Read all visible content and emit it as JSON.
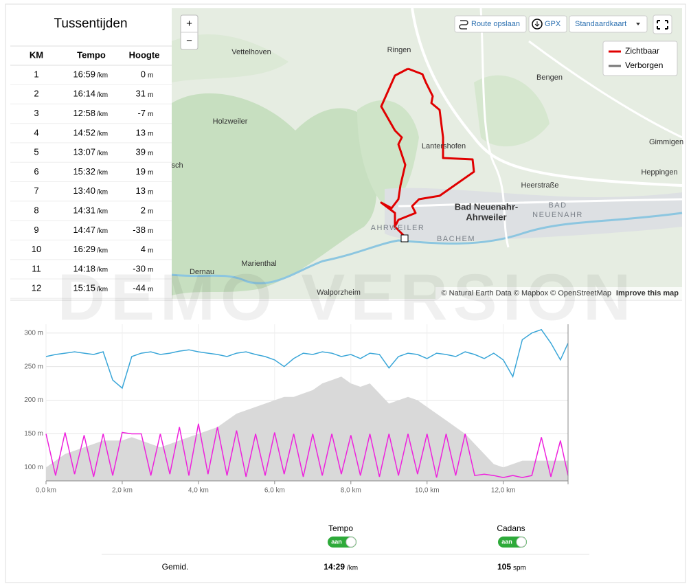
{
  "splits": {
    "title": "Tussentijden",
    "headers": [
      "KM",
      "Tempo",
      "Hoogte"
    ],
    "rows": [
      {
        "km": 1,
        "tempo": "16:59",
        "tempo_unit": "/km",
        "hoogte": 0,
        "hoogte_unit": "m"
      },
      {
        "km": 2,
        "tempo": "16:14",
        "tempo_unit": "/km",
        "hoogte": 31,
        "hoogte_unit": "m"
      },
      {
        "km": 3,
        "tempo": "12:58",
        "tempo_unit": "/km",
        "hoogte": -7,
        "hoogte_unit": "m"
      },
      {
        "km": 4,
        "tempo": "14:52",
        "tempo_unit": "/km",
        "hoogte": 13,
        "hoogte_unit": "m"
      },
      {
        "km": 5,
        "tempo": "13:07",
        "tempo_unit": "/km",
        "hoogte": 39,
        "hoogte_unit": "m"
      },
      {
        "km": 6,
        "tempo": "15:32",
        "tempo_unit": "/km",
        "hoogte": 19,
        "hoogte_unit": "m"
      },
      {
        "km": 7,
        "tempo": "13:40",
        "tempo_unit": "/km",
        "hoogte": 13,
        "hoogte_unit": "m"
      },
      {
        "km": 8,
        "tempo": "14:31",
        "tempo_unit": "/km",
        "hoogte": 2,
        "hoogte_unit": "m"
      },
      {
        "km": 9,
        "tempo": "14:47",
        "tempo_unit": "/km",
        "hoogte": -38,
        "hoogte_unit": "m"
      },
      {
        "km": 10,
        "tempo": "16:29",
        "tempo_unit": "/km",
        "hoogte": 4,
        "hoogte_unit": "m"
      },
      {
        "km": 11,
        "tempo": "14:18",
        "tempo_unit": "/km",
        "hoogte": -30,
        "hoogte_unit": "m"
      },
      {
        "km": 12,
        "tempo": "15:15",
        "tempo_unit": "/km",
        "hoogte": -44,
        "hoogte_unit": "m"
      }
    ]
  },
  "map": {
    "zoom_in": "+",
    "zoom_out": "−",
    "buttons": [
      "Route opslaan",
      "GPX",
      "Standaardkaart"
    ],
    "legend": [
      {
        "label": "Zichtbaar",
        "color": "#e00000"
      },
      {
        "label": "Verborgen",
        "color": "#777777"
      }
    ],
    "places": [
      "Vettelhoven",
      "Ringen",
      "Bengen",
      "Holzweiler",
      "Lantershofen",
      "Gimmigen",
      "sch",
      "Heerstraße",
      "Heppingen",
      "Bad Neuenahr-",
      "Ahrweiler",
      "BAD",
      "NEUENAHR",
      "AHRWEILER",
      "BACHEM",
      "Marienthal",
      "Dernau",
      "Walporzheim"
    ],
    "attribution": "© Natural Earth Data © Mapbox © OpenStreetMap",
    "improve": "Improve this map"
  },
  "watermark": "DEMO VERSION",
  "chart_data": {
    "type": "line",
    "x": [
      0,
      0.25,
      0.5,
      0.75,
      1,
      1.25,
      1.5,
      1.75,
      2,
      2.25,
      2.5,
      2.75,
      3,
      3.25,
      3.5,
      3.75,
      4,
      4.25,
      4.5,
      4.75,
      5,
      5.25,
      5.5,
      5.75,
      6,
      6.25,
      6.5,
      6.75,
      7,
      7.25,
      7.5,
      7.75,
      8,
      8.25,
      8.5,
      8.75,
      9,
      9.25,
      9.5,
      9.75,
      10,
      10.25,
      10.5,
      10.75,
      11,
      11.25,
      11.5,
      11.75,
      12,
      12.25,
      12.5,
      12.75,
      13,
      13.25,
      13.5,
      13.7
    ],
    "series": [
      {
        "color": "#d9d9d9",
        "fill": true,
        "values": [
          100,
          110,
          120,
          125,
          130,
          135,
          140,
          140,
          140,
          145,
          140,
          135,
          130,
          135,
          140,
          145,
          150,
          155,
          160,
          170,
          180,
          185,
          190,
          195,
          200,
          205,
          205,
          210,
          215,
          225,
          230,
          235,
          225,
          220,
          225,
          210,
          195,
          200,
          205,
          200,
          190,
          180,
          170,
          160,
          150,
          135,
          120,
          105,
          100,
          105,
          110,
          110,
          110,
          110,
          110,
          110
        ]
      },
      {
        "color": "#3aa6d8",
        "fill": false,
        "values": [
          265,
          268,
          270,
          272,
          270,
          268,
          272,
          230,
          218,
          265,
          270,
          272,
          268,
          270,
          273,
          275,
          272,
          270,
          268,
          265,
          270,
          272,
          268,
          265,
          260,
          250,
          262,
          270,
          268,
          272,
          270,
          265,
          268,
          262,
          270,
          268,
          248,
          265,
          270,
          268,
          262,
          270,
          268,
          265,
          272,
          268,
          262,
          270,
          260,
          235,
          290,
          300,
          305,
          285,
          260,
          285
        ]
      },
      {
        "color": "#ee22dd",
        "fill": false,
        "values": [
          150,
          88,
          152,
          90,
          148,
          86,
          150,
          88,
          152,
          150,
          150,
          88,
          150,
          90,
          160,
          88,
          165,
          90,
          160,
          88,
          155,
          86,
          150,
          88,
          152,
          90,
          150,
          86,
          150,
          88,
          150,
          90,
          148,
          88,
          150,
          86,
          150,
          88,
          150,
          90,
          150,
          85,
          150,
          88,
          150,
          88,
          90,
          88,
          85,
          88,
          85,
          88,
          145,
          86,
          140,
          88
        ]
      }
    ],
    "xlim": [
      0,
      13.7
    ],
    "ylim": [
      80,
      313
    ],
    "xticks": [
      {
        "value": 0,
        "label": "0,0 km"
      },
      {
        "value": 2,
        "label": "2,0 km"
      },
      {
        "value": 4,
        "label": "4,0 km"
      },
      {
        "value": 6,
        "label": "6,0 km"
      },
      {
        "value": 8,
        "label": "8,0 km"
      },
      {
        "value": 10,
        "label": "10,0 km"
      },
      {
        "value": 12,
        "label": "12,0 km"
      }
    ],
    "yticks": [
      {
        "value": 100,
        "label": "100 m"
      },
      {
        "value": 150,
        "label": "150 m"
      },
      {
        "value": 200,
        "label": "200 m"
      },
      {
        "value": 250,
        "label": "250 m"
      },
      {
        "value": 300,
        "label": "300 m"
      }
    ],
    "grid": true
  },
  "stats": {
    "columns": [
      "Tempo",
      "Cadans"
    ],
    "toggles": [
      "aan",
      "aan"
    ],
    "row_label": "Gemid.",
    "tempo": "14:29",
    "tempo_unit": "/km",
    "cadans": 105,
    "cadans_unit": "spm"
  }
}
